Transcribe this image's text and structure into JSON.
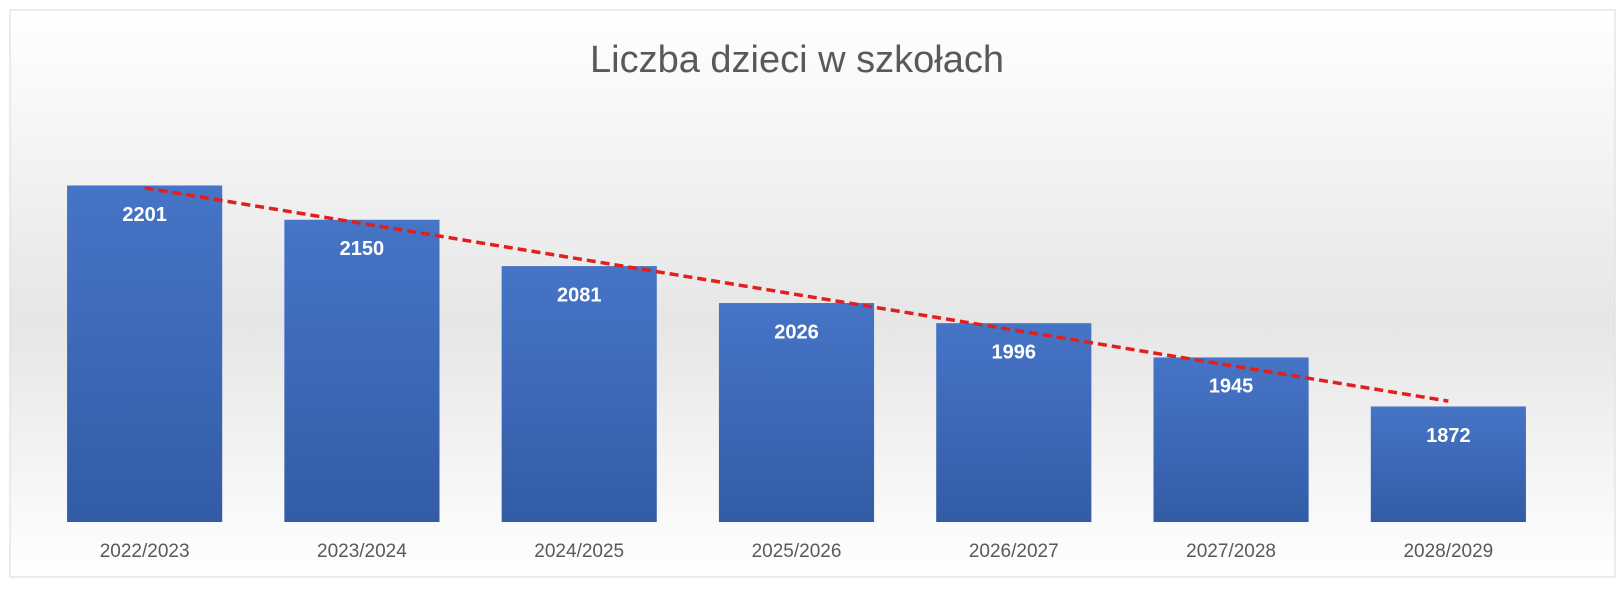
{
  "chart_data": {
    "type": "bar",
    "title": "Liczba dzieci w szkołach",
    "categories": [
      "2022/2023",
      "2023/2024",
      "2024/2025",
      "2025/2026",
      "2026/2027",
      "2027/2028",
      "2028/2029"
    ],
    "values": [
      2201,
      2150,
      2081,
      2026,
      1996,
      1945,
      1872
    ],
    "color": "#4472c4",
    "ylim": [
      1700,
      2300
    ],
    "trendline": {
      "type": "linear",
      "color": "#e0201c",
      "dashed": true
    }
  }
}
